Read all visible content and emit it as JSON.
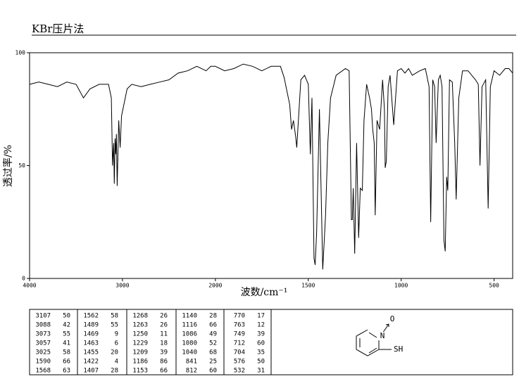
{
  "chart_data": {
    "type": "line",
    "title": "KBr压片法",
    "xlabel": "波数/cm⁻¹",
    "ylabel": "透过率/%",
    "xlim": [
      4000,
      400
    ],
    "x_scale_break": 2000,
    "xticks": [
      4000,
      3000,
      2000,
      1500,
      1000,
      500
    ],
    "ylim": [
      0,
      100
    ],
    "yticks": [
      0,
      50,
      100
    ],
    "x": [
      4000,
      3900,
      3800,
      3700,
      3600,
      3500,
      3420,
      3350,
      3250,
      3150,
      3120,
      3107,
      3095,
      3088,
      3080,
      3073,
      3065,
      3057,
      3040,
      3025,
      3010,
      3000,
      2950,
      2900,
      2800,
      2700,
      2600,
      2500,
      2400,
      2300,
      2200,
      2100,
      2050,
      2000,
      1950,
      1900,
      1850,
      1800,
      1750,
      1700,
      1650,
      1630,
      1600,
      1590,
      1580,
      1568,
      1562,
      1540,
      1520,
      1500,
      1489,
      1480,
      1469,
      1463,
      1455,
      1440,
      1422,
      1407,
      1395,
      1380,
      1350,
      1300,
      1280,
      1268,
      1263,
      1258,
      1250,
      1240,
      1229,
      1220,
      1209,
      1200,
      1186,
      1170,
      1160,
      1153,
      1145,
      1140,
      1130,
      1116,
      1100,
      1090,
      1086,
      1080,
      1070,
      1060,
      1040,
      1020,
      1000,
      980,
      960,
      940,
      900,
      870,
      850,
      841,
      830,
      820,
      812,
      800,
      790,
      780,
      770,
      763,
      755,
      749,
      740,
      725,
      712,
      704,
      690,
      670,
      640,
      600,
      585,
      576,
      565,
      545,
      532,
      520,
      500,
      470,
      440,
      420,
      400
    ],
    "series": [
      {
        "name": "spectrum",
        "color": "#000000",
        "values": [
          86,
          87,
          86,
          85,
          87,
          86,
          80,
          84,
          86,
          86,
          80,
          50,
          60,
          42,
          62,
          55,
          64,
          41,
          70,
          58,
          72,
          74,
          84,
          86,
          85,
          86,
          87,
          88,
          91,
          92,
          94,
          92,
          94,
          94,
          92,
          93,
          95,
          94,
          92,
          94,
          94,
          89,
          77,
          66,
          70,
          63,
          58,
          88,
          90,
          86,
          55,
          80,
          9,
          6,
          20,
          75,
          4,
          28,
          60,
          80,
          90,
          93,
          92,
          26,
          26,
          40,
          11,
          60,
          18,
          40,
          39,
          70,
          86,
          80,
          75,
          66,
          60,
          28,
          70,
          66,
          88,
          75,
          49,
          52,
          85,
          90,
          68,
          92,
          93,
          91,
          93,
          90,
          92,
          93,
          85,
          25,
          88,
          85,
          60,
          88,
          90,
          85,
          17,
          12,
          45,
          39,
          88,
          87,
          60,
          35,
          80,
          92,
          92,
          88,
          86,
          50,
          85,
          88,
          31,
          85,
          92,
          90,
          93,
          93,
          91
        ]
      }
    ]
  },
  "peak_table": {
    "rows": [
      [
        [
          3107,
          50
        ],
        [
          1562,
          58
        ],
        [
          1268,
          26
        ],
        [
          1140,
          28
        ],
        [
          770,
          17
        ]
      ],
      [
        [
          3088,
          42
        ],
        [
          1489,
          55
        ],
        [
          1263,
          26
        ],
        [
          1116,
          66
        ],
        [
          763,
          12
        ]
      ],
      [
        [
          3073,
          55
        ],
        [
          1469,
          9
        ],
        [
          1250,
          11
        ],
        [
          1086,
          49
        ],
        [
          749,
          39
        ]
      ],
      [
        [
          3057,
          41
        ],
        [
          1463,
          6
        ],
        [
          1229,
          18
        ],
        [
          1080,
          52
        ],
        [
          712,
          60
        ]
      ],
      [
        [
          3025,
          58
        ],
        [
          1455,
          20
        ],
        [
          1209,
          39
        ],
        [
          1040,
          68
        ],
        [
          704,
          35
        ]
      ],
      [
        [
          1590,
          66
        ],
        [
          1422,
          4
        ],
        [
          1186,
          86
        ],
        [
          841,
          25
        ],
        [
          576,
          50
        ]
      ],
      [
        [
          1568,
          63
        ],
        [
          1407,
          28
        ],
        [
          1153,
          66
        ],
        [
          812,
          60
        ],
        [
          532,
          31
        ]
      ]
    ]
  },
  "structure": {
    "atoms": [
      "O",
      "N",
      "SH"
    ]
  }
}
